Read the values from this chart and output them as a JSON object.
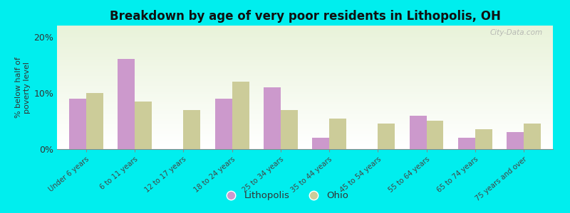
{
  "title": "Breakdown by age of very poor residents in Lithopolis, OH",
  "ylabel": "% below half of\npoverty level",
  "categories": [
    "Under 6 years",
    "6 to 11 years",
    "12 to 17 years",
    "18 to 24 years",
    "25 to 34 years",
    "35 to 44 years",
    "45 to 54 years",
    "55 to 64 years",
    "65 to 74 years",
    "75 years and over"
  ],
  "lithopolis_values": [
    9.0,
    16.0,
    0.0,
    9.0,
    11.0,
    2.0,
    0.0,
    6.0,
    2.0,
    3.0
  ],
  "ohio_values": [
    10.0,
    8.5,
    7.0,
    12.0,
    7.0,
    5.5,
    4.5,
    5.0,
    3.5,
    4.5
  ],
  "lithopolis_color": "#cc99cc",
  "ohio_color": "#cccc99",
  "background_color": "#00eeee",
  "ylim": [
    0,
    22
  ],
  "yticks": [
    0,
    10,
    20
  ],
  "ytick_labels": [
    "0%",
    "10%",
    "20%"
  ],
  "bar_width": 0.35,
  "legend_lithopolis": "Lithopolis",
  "legend_ohio": "Ohio",
  "watermark": "City-Data.com"
}
